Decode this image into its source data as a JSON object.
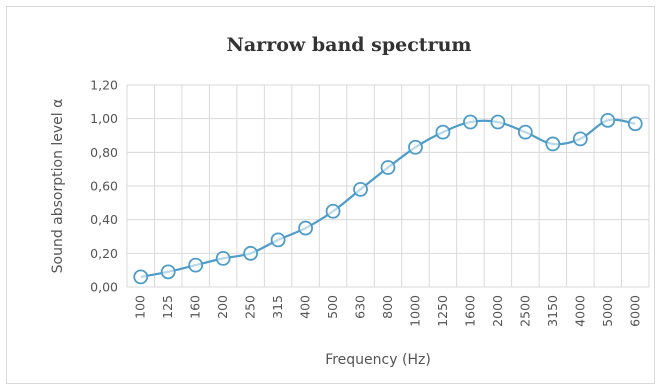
{
  "chart_data": {
    "type": "line",
    "title": "Narrow band spectrum",
    "xlabel": "Frequency (Hz)",
    "ylabel": "Sound absorption level α",
    "categories": [
      "100",
      "125",
      "160",
      "200",
      "250",
      "315",
      "400",
      "500",
      "630",
      "800",
      "1000",
      "1250",
      "1600",
      "2000",
      "2500",
      "3150",
      "4000",
      "5000",
      "6000"
    ],
    "series": [
      {
        "values": [
          0.06,
          0.09,
          0.13,
          0.17,
          0.2,
          0.28,
          0.35,
          0.45,
          0.58,
          0.71,
          0.83,
          0.92,
          0.98,
          0.98,
          0.92,
          0.85,
          0.88,
          0.99,
          0.97
        ]
      }
    ],
    "ylim": [
      0,
      1.2
    ],
    "yticks": [
      0,
      0.2,
      0.4,
      0.6,
      0.8,
      1.0,
      1.2
    ],
    "ytick_labels": [
      "0,00",
      "0,20",
      "0,40",
      "0,60",
      "0,80",
      "1,00",
      "1,20"
    ],
    "grid": true,
    "line_color": "#4f9cc9",
    "marker": "open-circle"
  }
}
